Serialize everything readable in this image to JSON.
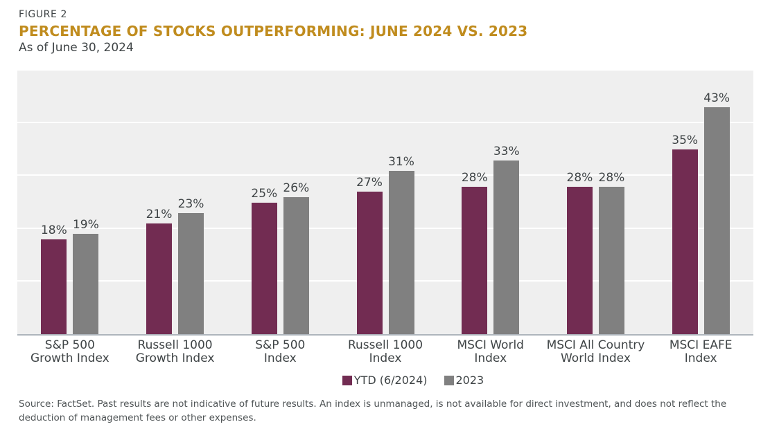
{
  "header": {
    "figure_label": "FIGURE 2",
    "title": "PERCENTAGE OF STOCKS OUTPERFORMING: JUNE 2024 VS. 2023",
    "subtitle": "As of June 30, 2024"
  },
  "colors": {
    "title_accent": "#C08C1E",
    "text": "#3F4446",
    "plot_background": "#EFEFEF",
    "gridline": "#FFFFFF",
    "axis_line": "#AEB5BC",
    "series_ytd": "#722C52",
    "series_2023": "#808080"
  },
  "chart_data": {
    "type": "bar",
    "title": "PERCENTAGE OF STOCKS OUTPERFORMING: JUNE 2024 VS. 2023",
    "subtitle": "As of June 30, 2024",
    "categories": [
      "S&P 500\nGrowth Index",
      "Russell 1000\nGrowth Index",
      "S&P 500\nIndex",
      "Russell 1000\nIndex",
      "MSCI World\nIndex",
      "MSCI All Country\nWorld Index",
      "MSCI EAFE\nIndex"
    ],
    "series": [
      {
        "name": "YTD (6/2024)",
        "color": "#722C52",
        "values": [
          18,
          21,
          25,
          27,
          28,
          28,
          35
        ]
      },
      {
        "name": "2023",
        "color": "#808080",
        "values": [
          19,
          23,
          26,
          31,
          33,
          28,
          43
        ]
      }
    ],
    "value_suffix": "%",
    "ylim": [
      0,
      50
    ],
    "gridline_values": [
      10,
      20,
      30,
      40
    ],
    "grid": true,
    "y_axis_labels": false,
    "data_labels": true,
    "legend_position": "bottom"
  },
  "legend": {
    "items": [
      {
        "label": "YTD (6/2024)",
        "color": "#722C52"
      },
      {
        "label": "2023",
        "color": "#808080"
      }
    ]
  },
  "footer": {
    "source_text": "Source: FactSet. Past results are not indicative of future results. An index is unmanaged, is not available for direct investment, and does not reflect the deduction of management fees or other expenses."
  }
}
